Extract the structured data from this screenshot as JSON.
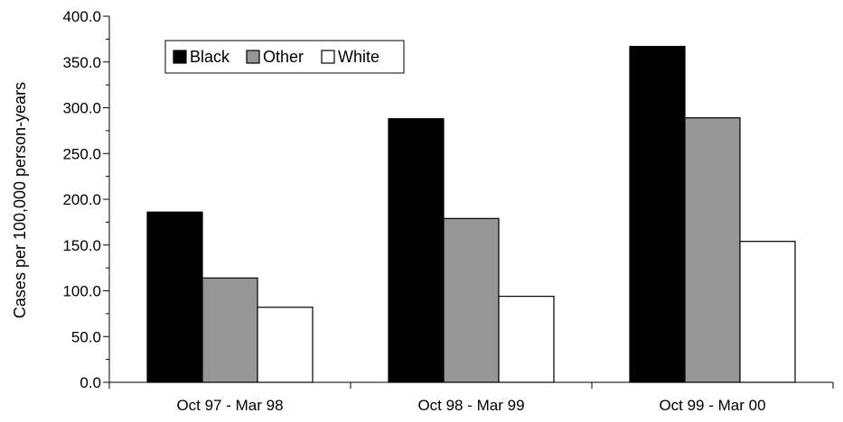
{
  "chart_data": {
    "type": "bar",
    "title": "",
    "xlabel": "",
    "ylabel": "Cases per 100,000 person-years",
    "ylim": [
      0,
      400
    ],
    "ytick_step": 50,
    "ytick_labels": [
      "0.0",
      "50.0",
      "100.0",
      "150.0",
      "200.0",
      "250.0",
      "300.0",
      "350.0",
      "400.0"
    ],
    "categories": [
      "Oct 97 - Mar 98",
      "Oct 98 - Mar 99",
      "Oct 99 - Mar 00"
    ],
    "series": [
      {
        "name": "Black",
        "color": "#000000",
        "values": [
          186,
          288,
          367
        ]
      },
      {
        "name": "Other",
        "color": "#969696",
        "values": [
          114,
          179,
          289
        ]
      },
      {
        "name": "White",
        "color": "#ffffff",
        "values": [
          82,
          94,
          154
        ]
      }
    ],
    "grid": false,
    "legend_position": "top-left"
  }
}
